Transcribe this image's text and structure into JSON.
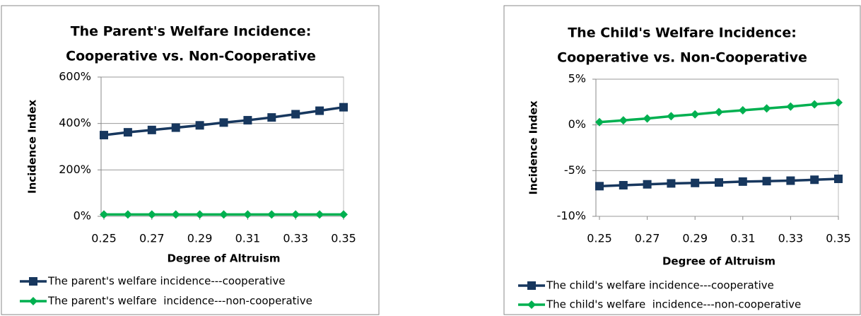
{
  "chart_data": [
    {
      "type": "line",
      "title": [
        "The Parent's Welfare Incidence:",
        "Cooperative vs. Non-Cooperative"
      ],
      "x_label": "Degree of Altruism",
      "y_label": "Incidence Index",
      "x": [
        0.25,
        0.26,
        0.27,
        0.28,
        0.29,
        0.3,
        0.31,
        0.32,
        0.33,
        0.34,
        0.35
      ],
      "xlim": [
        0.25,
        0.35
      ],
      "xticks": [
        0.25,
        0.27,
        0.29,
        0.31,
        0.33,
        0.35
      ],
      "ylim": [
        0,
        600
      ],
      "yticks": [
        {
          "value": 0,
          "label": "0%"
        },
        {
          "value": 200,
          "label": "200%"
        },
        {
          "value": 400,
          "label": "400%"
        },
        {
          "value": 600,
          "label": "600%"
        }
      ],
      "grid": true,
      "series": [
        {
          "name": "The parent's welfare incidence---cooperative",
          "color": "#17375e",
          "marker": "square",
          "values": [
            350,
            362,
            372,
            382,
            392,
            404,
            414,
            426,
            440,
            455,
            470
          ]
        },
        {
          "name": "The parent's welfare  incidence---non-cooperative",
          "color": "#00b050",
          "marker": "diamond",
          "values": [
            8,
            8,
            8,
            8,
            8,
            8,
            8,
            8,
            8,
            8,
            8
          ]
        }
      ]
    },
    {
      "type": "line",
      "title": [
        "The Child's Welfare Incidence:",
        "Cooperative vs. Non-Cooperative"
      ],
      "x_label": "Degree of Altruism",
      "y_label": "Incidence Index",
      "x": [
        0.25,
        0.26,
        0.27,
        0.28,
        0.29,
        0.3,
        0.31,
        0.32,
        0.33,
        0.34,
        0.35
      ],
      "xlim": [
        0.25,
        0.35
      ],
      "xticks": [
        0.25,
        0.27,
        0.29,
        0.31,
        0.33,
        0.35
      ],
      "ylim": [
        -10,
        5
      ],
      "yticks": [
        {
          "value": -10,
          "label": "-10%"
        },
        {
          "value": -5,
          "label": "-5%"
        },
        {
          "value": 0,
          "label": "0%"
        },
        {
          "value": 5,
          "label": "5%"
        }
      ],
      "grid": true,
      "series": [
        {
          "name": "The child's welfare incidence---cooperative",
          "color": "#17375e",
          "marker": "square",
          "values": [
            -6.7,
            -6.6,
            -6.5,
            -6.4,
            -6.35,
            -6.3,
            -6.2,
            -6.15,
            -6.1,
            -6.0,
            -5.9
          ]
        },
        {
          "name": "The child's welfare  incidence---non-cooperative",
          "color": "#00b050",
          "marker": "diamond",
          "values": [
            0.3,
            0.5,
            0.7,
            0.95,
            1.15,
            1.4,
            1.6,
            1.8,
            2.0,
            2.25,
            2.45
          ]
        }
      ]
    }
  ]
}
